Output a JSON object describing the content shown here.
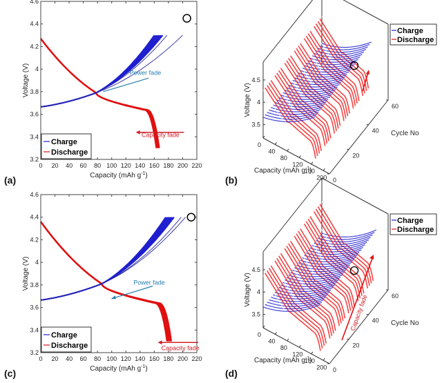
{
  "figure": {
    "panel_labels": [
      "(a)",
      "(b)",
      "(c)",
      "(d)"
    ]
  },
  "chart_data": [
    {
      "id": "a",
      "type": "line",
      "xlabel": "Capacity (mAh g",
      "xlabel_sup": "-1",
      "xlabel_end": ")",
      "ylabel": "Voltage (V)",
      "xlim": [
        0,
        220
      ],
      "ylim": [
        3.2,
        4.6
      ],
      "xticks": [
        0,
        20,
        40,
        60,
        80,
        100,
        120,
        140,
        160,
        180,
        200,
        220
      ],
      "yticks": [
        3.2,
        3.4,
        3.6,
        3.8,
        4,
        4.2,
        4.4,
        4.6
      ],
      "ytick_labels": [
        "3.2",
        "3.4",
        "3.6",
        "3.8",
        "4",
        "4.2",
        "4.4",
        "4.6"
      ],
      "legend": [
        {
          "name": "Charge",
          "color": "#1f1fd0"
        },
        {
          "name": "Discharge",
          "color": "#e01010"
        }
      ],
      "legend_position": "bottom-left",
      "charge_cutoff": 4.3,
      "charge_end_capacities": [
        160,
        162,
        164,
        166,
        168,
        170,
        172,
        178,
        200
      ],
      "discharge_start_voltage": 4.27,
      "discharge_end_capacities": [
        163,
        164,
        165,
        166,
        167
      ],
      "discharge_cutoff": 3.3,
      "crossover": {
        "x": 78,
        "y": 3.79
      },
      "annotations": [
        {
          "text": "Power fade",
          "color": "#2a7fb0",
          "x": 135,
          "y": 3.93
        },
        {
          "text": "Capacity fade",
          "color": "#d0202a",
          "x": 155,
          "y": 3.4
        }
      ],
      "marker": {
        "type": "circle",
        "x": 206,
        "y": 4.45
      }
    },
    {
      "id": "b",
      "type": "line",
      "projection": "3d",
      "xlabel": "Capacity (mAh g",
      "xlabel_sup": "-1",
      "xlabel_end": ")",
      "ylabel": "Voltage (V)",
      "zlabel": "Cycle No",
      "xticks": [
        0,
        40,
        80,
        120,
        160,
        200
      ],
      "voltage_ticks": [
        "3.5",
        "4",
        "4.5"
      ],
      "cycle_ticks": [
        0,
        20,
        40,
        60
      ],
      "legend": [
        {
          "name": "Charge",
          "color": "#1f1fd0"
        },
        {
          "name": "Discharge",
          "color": "#e01010"
        }
      ],
      "legend_position": "top-right"
    },
    {
      "id": "c",
      "type": "line",
      "xlabel": "Capacity (mAh g",
      "xlabel_sup": "-1",
      "xlabel_end": ")",
      "ylabel": "Voltage (V)",
      "xlim": [
        0,
        220
      ],
      "ylim": [
        3.2,
        4.6
      ],
      "xticks": [
        0,
        20,
        40,
        60,
        80,
        100,
        120,
        140,
        160,
        180,
        200,
        220
      ],
      "yticks": [
        3.2,
        3.4,
        3.6,
        3.8,
        4,
        4.2,
        4.4,
        4.6
      ],
      "ytick_labels": [
        "3.2",
        "3.4",
        "3.6",
        "3.8",
        "4",
        "4.2",
        "4.4",
        "4.6"
      ],
      "legend": [
        {
          "name": "Charge",
          "color": "#1f1fd0"
        },
        {
          "name": "Discharge",
          "color": "#e01010"
        }
      ],
      "legend_position": "bottom-left",
      "charge_cutoff": 4.4,
      "charge_end_capacities": [
        176,
        178,
        180,
        182,
        184,
        186,
        188,
        198,
        204
      ],
      "discharge_start_voltage": 4.36,
      "discharge_end_capacities": [
        178,
        179,
        180,
        181,
        182,
        183,
        184
      ],
      "discharge_cutoff": 3.3,
      "crossover": {
        "x": 86,
        "y": 3.81
      },
      "annotations": [
        {
          "text": "Power fade",
          "color": "#2a7fb0",
          "x": 120,
          "y": 3.82
        },
        {
          "text": "Capacity fade",
          "color": "#d0202a",
          "x": 178,
          "y": 3.26
        }
      ],
      "marker": {
        "type": "circle",
        "x": 212,
        "y": 4.4
      }
    },
    {
      "id": "d",
      "type": "line",
      "projection": "3d",
      "xlabel": "Capacity (mAh g",
      "xlabel_sup": "-1",
      "xlabel_end": ")",
      "ylabel": "Voltage (V)",
      "zlabel": "Cycle No",
      "xticks": [
        0,
        40,
        80,
        120,
        160,
        200
      ],
      "voltage_ticks": [
        "3.5",
        "4",
        "4.5"
      ],
      "cycle_ticks": [
        0,
        20,
        40,
        60
      ],
      "legend": [
        {
          "name": "Charge",
          "color": "#1f1fd0"
        },
        {
          "name": "Discharge",
          "color": "#e01010"
        }
      ],
      "legend_position": "top-right",
      "annotations": [
        {
          "text": "Capacity fade",
          "color": "#d0202a"
        }
      ]
    }
  ]
}
